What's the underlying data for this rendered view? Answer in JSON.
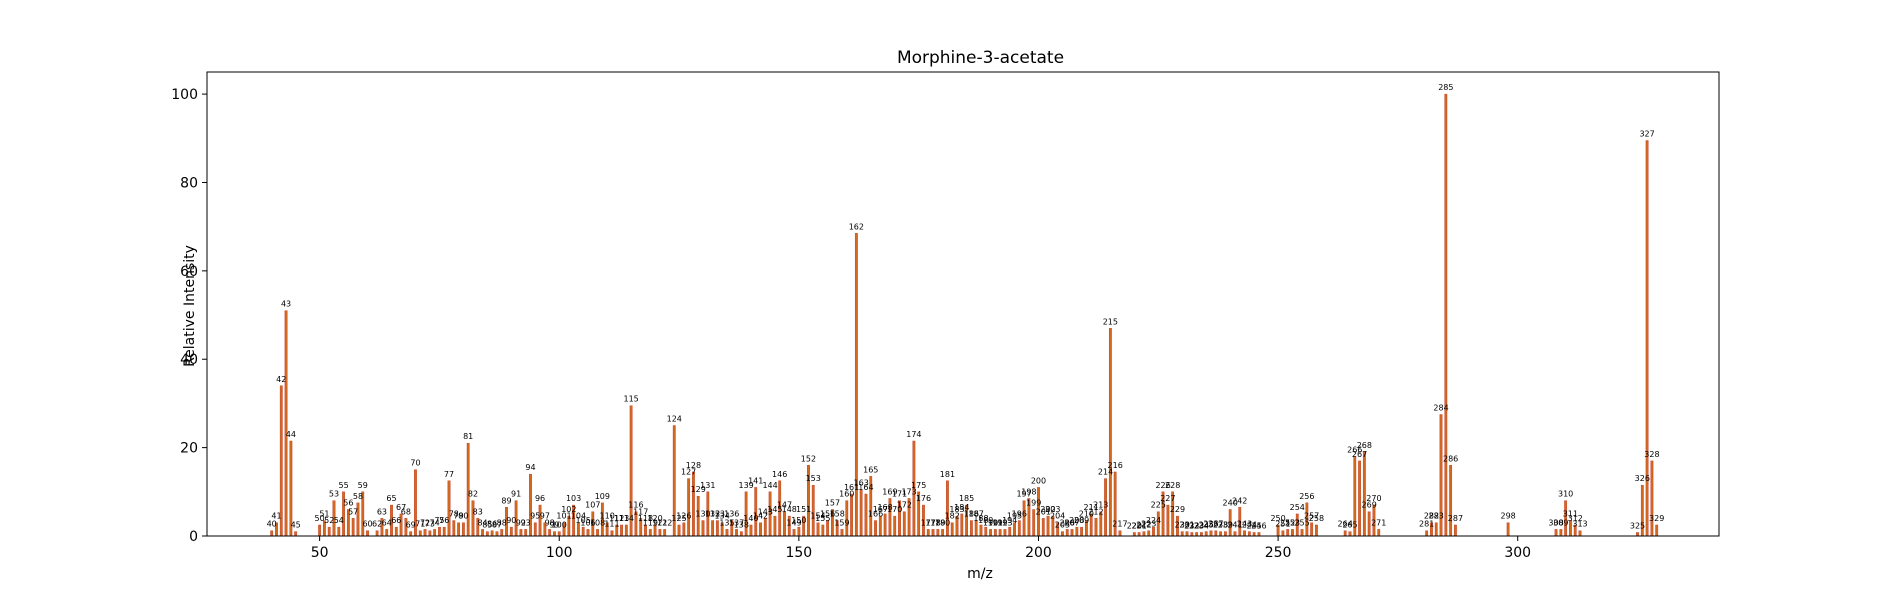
{
  "chart_data": {
    "type": "bar",
    "title": "Morphine-3-acetate",
    "xlabel": "m/z",
    "ylabel": "Relative Intensity",
    "xlim": [
      26.5,
      342
    ],
    "ylim": [
      0,
      105
    ],
    "xticks": [
      50,
      100,
      150,
      200,
      250,
      300
    ],
    "yticks": [
      0,
      20,
      40,
      60,
      80,
      100
    ],
    "grid": false,
    "bar_color": "#d2691e",
    "bar_edge_color": "#c0392b",
    "points": [
      [
        40,
        1.2
      ],
      [
        41,
        3.0
      ],
      [
        42,
        34.0
      ],
      [
        43,
        51.0
      ],
      [
        44,
        21.5
      ],
      [
        45,
        1.0
      ],
      [
        50,
        2.5
      ],
      [
        51,
        3.5
      ],
      [
        52,
        2.0
      ],
      [
        53,
        8.0
      ],
      [
        54,
        2.0
      ],
      [
        55,
        10.0
      ],
      [
        56,
        6.0
      ],
      [
        57,
        4.0
      ],
      [
        58,
        7.5
      ],
      [
        59,
        10.0
      ],
      [
        60,
        1.2
      ],
      [
        62,
        1.2
      ],
      [
        63,
        4.0
      ],
      [
        64,
        1.5
      ],
      [
        65,
        7.0
      ],
      [
        66,
        2.0
      ],
      [
        67,
        5.0
      ],
      [
        68,
        4.0
      ],
      [
        69,
        1.0
      ],
      [
        70,
        15.0
      ],
      [
        71,
        1.2
      ],
      [
        72,
        1.5
      ],
      [
        73,
        1.2
      ],
      [
        74,
        1.5
      ],
      [
        75,
        2.0
      ],
      [
        76,
        2.0
      ],
      [
        77,
        12.5
      ],
      [
        78,
        3.5
      ],
      [
        79,
        3.0
      ],
      [
        80,
        3.0
      ],
      [
        81,
        21.0
      ],
      [
        82,
        8.0
      ],
      [
        83,
        4.0
      ],
      [
        84,
        1.5
      ],
      [
        85,
        1.0
      ],
      [
        86,
        1.2
      ],
      [
        87,
        1.0
      ],
      [
        88,
        1.5
      ],
      [
        89,
        6.5
      ],
      [
        90,
        2.0
      ],
      [
        91,
        8.0
      ],
      [
        92,
        1.5
      ],
      [
        93,
        1.5
      ],
      [
        94,
        14.0
      ],
      [
        95,
        3.0
      ],
      [
        96,
        7.0
      ],
      [
        97,
        3.0
      ],
      [
        98,
        1.5
      ],
      [
        99,
        1.0
      ],
      [
        100,
        1.0
      ],
      [
        101,
        3.0
      ],
      [
        102,
        4.5
      ],
      [
        103,
        7.0
      ],
      [
        104,
        3.0
      ],
      [
        105,
        2.0
      ],
      [
        106,
        1.5
      ],
      [
        107,
        5.5
      ],
      [
        108,
        1.5
      ],
      [
        109,
        7.5
      ],
      [
        110,
        3.0
      ],
      [
        111,
        1.2
      ],
      [
        112,
        2.5
      ],
      [
        113,
        2.5
      ],
      [
        114,
        2.5
      ],
      [
        115,
        29.5
      ],
      [
        116,
        5.5
      ],
      [
        117,
        4.0
      ],
      [
        118,
        2.5
      ],
      [
        119,
        1.5
      ],
      [
        120,
        2.5
      ],
      [
        121,
        1.5
      ],
      [
        122,
        1.5
      ],
      [
        124,
        25.0
      ],
      [
        125,
        2.5
      ],
      [
        126,
        3.0
      ],
      [
        127,
        13.0
      ],
      [
        128,
        14.5
      ],
      [
        129,
        9.0
      ],
      [
        130,
        3.5
      ],
      [
        131,
        10.0
      ],
      [
        132,
        3.5
      ],
      [
        133,
        3.5
      ],
      [
        134,
        3.0
      ],
      [
        135,
        1.5
      ],
      [
        136,
        3.5
      ],
      [
        137,
        1.5
      ],
      [
        138,
        1.0
      ],
      [
        139,
        10.0
      ],
      [
        140,
        2.5
      ],
      [
        141,
        11.0
      ],
      [
        142,
        3.0
      ],
      [
        143,
        4.0
      ],
      [
        144,
        10.0
      ],
      [
        145,
        4.5
      ],
      [
        146,
        12.5
      ],
      [
        147,
        5.5
      ],
      [
        148,
        4.5
      ],
      [
        149,
        1.5
      ],
      [
        150,
        2.0
      ],
      [
        151,
        4.5
      ],
      [
        152,
        16.0
      ],
      [
        153,
        11.5
      ],
      [
        154,
        3.0
      ],
      [
        155,
        2.5
      ],
      [
        156,
        3.5
      ],
      [
        157,
        6.0
      ],
      [
        158,
        3.5
      ],
      [
        159,
        1.5
      ],
      [
        160,
        8.0
      ],
      [
        161,
        9.5
      ],
      [
        162,
        68.5
      ],
      [
        163,
        10.5
      ],
      [
        164,
        9.5
      ],
      [
        165,
        13.5
      ],
      [
        166,
        3.5
      ],
      [
        167,
        4.5
      ],
      [
        168,
        5.0
      ],
      [
        169,
        8.5
      ],
      [
        170,
        4.5
      ],
      [
        171,
        8.0
      ],
      [
        172,
        5.5
      ],
      [
        173,
        8.5
      ],
      [
        174,
        21.5
      ],
      [
        175,
        10.0
      ],
      [
        176,
        7.0
      ],
      [
        177,
        1.5
      ],
      [
        178,
        1.5
      ],
      [
        179,
        1.5
      ],
      [
        180,
        1.5
      ],
      [
        181,
        12.5
      ],
      [
        182,
        3.0
      ],
      [
        183,
        4.5
      ],
      [
        184,
        5.0
      ],
      [
        185,
        7.0
      ],
      [
        186,
        3.5
      ],
      [
        187,
        3.5
      ],
      [
        188,
        2.5
      ],
      [
        189,
        2.0
      ],
      [
        190,
        1.5
      ],
      [
        191,
        1.5
      ],
      [
        192,
        1.5
      ],
      [
        193,
        1.5
      ],
      [
        194,
        2.0
      ],
      [
        195,
        3.0
      ],
      [
        196,
        3.5
      ],
      [
        197,
        8.0
      ],
      [
        198,
        8.5
      ],
      [
        199,
        6.0
      ],
      [
        200,
        11.0
      ],
      [
        201,
        4.0
      ],
      [
        202,
        4.5
      ],
      [
        203,
        4.5
      ],
      [
        204,
        3.0
      ],
      [
        205,
        1.0
      ],
      [
        206,
        1.5
      ],
      [
        207,
        1.5
      ],
      [
        208,
        2.0
      ],
      [
        209,
        2.0
      ],
      [
        210,
        3.5
      ],
      [
        211,
        5.0
      ],
      [
        212,
        4.0
      ],
      [
        213,
        5.5
      ],
      [
        214,
        13.0
      ],
      [
        215,
        47.0
      ],
      [
        216,
        14.5
      ],
      [
        217,
        1.2
      ],
      [
        220,
        0.8
      ],
      [
        221,
        0.8
      ],
      [
        222,
        1.0
      ],
      [
        223,
        1.2
      ],
      [
        224,
        2.0
      ],
      [
        225,
        5.5
      ],
      [
        226,
        10.0
      ],
      [
        227,
        7.0
      ],
      [
        228,
        10.0
      ],
      [
        229,
        4.5
      ],
      [
        230,
        1.0
      ],
      [
        231,
        1.0
      ],
      [
        232,
        0.8
      ],
      [
        233,
        0.8
      ],
      [
        234,
        0.8
      ],
      [
        235,
        1.0
      ],
      [
        236,
        1.2
      ],
      [
        237,
        1.2
      ],
      [
        238,
        1.0
      ],
      [
        239,
        1.0
      ],
      [
        240,
        6.0
      ],
      [
        241,
        1.0
      ],
      [
        242,
        6.5
      ],
      [
        243,
        1.2
      ],
      [
        244,
        1.0
      ],
      [
        245,
        0.8
      ],
      [
        246,
        0.8
      ],
      [
        250,
        2.5
      ],
      [
        251,
        1.2
      ],
      [
        252,
        1.5
      ],
      [
        253,
        1.5
      ],
      [
        254,
        5.0
      ],
      [
        255,
        1.5
      ],
      [
        256,
        7.5
      ],
      [
        257,
        3.0
      ],
      [
        258,
        2.5
      ],
      [
        264,
        1.2
      ],
      [
        265,
        1.0
      ],
      [
        266,
        18.0
      ],
      [
        267,
        17.0
      ],
      [
        268,
        19.0
      ],
      [
        269,
        5.5
      ],
      [
        270,
        7.0
      ],
      [
        271,
        1.5
      ],
      [
        281,
        1.2
      ],
      [
        282,
        3.0
      ],
      [
        283,
        3.0
      ],
      [
        284,
        27.5
      ],
      [
        285,
        100.0
      ],
      [
        286,
        16.0
      ],
      [
        287,
        2.5
      ],
      [
        298,
        3.0
      ],
      [
        308,
        1.5
      ],
      [
        309,
        1.5
      ],
      [
        310,
        8.0
      ],
      [
        311,
        3.5
      ],
      [
        312,
        2.5
      ],
      [
        313,
        1.2
      ],
      [
        325,
        0.8
      ],
      [
        326,
        11.5
      ],
      [
        327,
        89.5
      ],
      [
        328,
        17.0
      ],
      [
        329,
        2.5
      ]
    ],
    "labels_shown": [
      40,
      41,
      42,
      43,
      44,
      45,
      50,
      51,
      52,
      53,
      54,
      55,
      56,
      57,
      58,
      59,
      60,
      62,
      63,
      64,
      65,
      66,
      67,
      68,
      69,
      70,
      71,
      72,
      73,
      74,
      75,
      76,
      77,
      78,
      79,
      80,
      81,
      82,
      83,
      84,
      85,
      86,
      87,
      88,
      89,
      90,
      91,
      92,
      93,
      94,
      95,
      96,
      97,
      98,
      99,
      100,
      101,
      102,
      103,
      104,
      105,
      106,
      107,
      108,
      109,
      110,
      111,
      112,
      113,
      114,
      115,
      116,
      117,
      118,
      119,
      120,
      121,
      122,
      124,
      125,
      126,
      127,
      128,
      129,
      130,
      131,
      132,
      133,
      134,
      135,
      136,
      137,
      138,
      139,
      140,
      141,
      142,
      143,
      144,
      145,
      146,
      147,
      148,
      149,
      150,
      151,
      152,
      153,
      154,
      155,
      156,
      157,
      158,
      159,
      160,
      161,
      162,
      163,
      164,
      165,
      166,
      167,
      168,
      169,
      170,
      171,
      172,
      173,
      174,
      175,
      176,
      177,
      178,
      179,
      180,
      181,
      182,
      183,
      184,
      185,
      186,
      187,
      188,
      189,
      190,
      191,
      192,
      193,
      194,
      195,
      196,
      197,
      198,
      199,
      200,
      201,
      202,
      203,
      204,
      205,
      206,
      207,
      208,
      209,
      210,
      211,
      212,
      213,
      214,
      215,
      216,
      217,
      220,
      221,
      222,
      223,
      224,
      225,
      226,
      227,
      228,
      229,
      230,
      231,
      232,
      233,
      234,
      235,
      236,
      237,
      238,
      239,
      240,
      241,
      242,
      243,
      244,
      245,
      246,
      250,
      251,
      252,
      253,
      254,
      255,
      256,
      257,
      258,
      264,
      265,
      266,
      267,
      268,
      269,
      270,
      271,
      281,
      282,
      283,
      284,
      285,
      286,
      287,
      298,
      308,
      309,
      310,
      311,
      312,
      313,
      325,
      326,
      327,
      328,
      329
    ]
  }
}
